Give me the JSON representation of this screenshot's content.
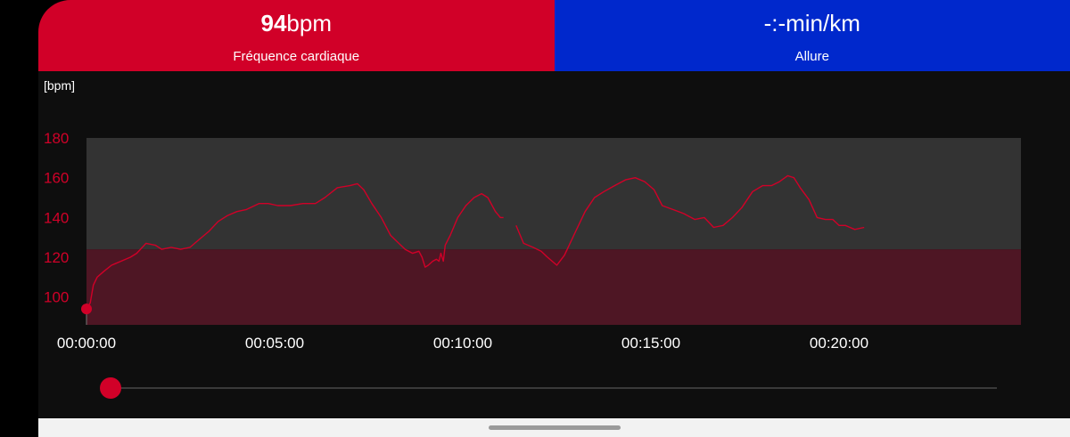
{
  "header": {
    "heart_rate": {
      "value": "94",
      "unit": "bpm",
      "label": "Fréquence cardiaque",
      "color": "#d10028"
    },
    "pace": {
      "value": "-:-",
      "unit": "min/km",
      "label": "Allure",
      "color": "#0028cc"
    }
  },
  "colors": {
    "line": "#d10028",
    "zone_high": "#333333",
    "zone_low": "#4e1624",
    "background": "#0e0e0e"
  },
  "chart_data": {
    "type": "line",
    "ylabel": "[bpm]",
    "ylim": [
      86,
      180
    ],
    "yticks": [
      100,
      120,
      140,
      160,
      180
    ],
    "xlim": [
      0,
      1490
    ],
    "xticks": [
      {
        "t": 0,
        "label": "00:00:00"
      },
      {
        "t": 300,
        "label": "00:05:00"
      },
      {
        "t": 600,
        "label": "00:10:00"
      },
      {
        "t": 900,
        "label": "00:15:00"
      },
      {
        "t": 1200,
        "label": "00:20:00"
      }
    ],
    "zones": [
      {
        "from": 86,
        "to": 124
      },
      {
        "from": 124,
        "to": 180
      }
    ],
    "marker": {
      "t": 0,
      "bpm": 94
    },
    "series": [
      {
        "segments": [
          [
            [
              0,
              94
            ],
            [
              6,
              97
            ],
            [
              11,
              106
            ],
            [
              17,
              110
            ],
            [
              28,
              113
            ],
            [
              40,
              116
            ],
            [
              55,
              118
            ],
            [
              70,
              120
            ],
            [
              80,
              122
            ],
            [
              95,
              127
            ],
            [
              110,
              126
            ],
            [
              120,
              124
            ],
            [
              135,
              125
            ],
            [
              150,
              124
            ],
            [
              165,
              125
            ],
            [
              180,
              129
            ],
            [
              195,
              133
            ],
            [
              210,
              138
            ],
            [
              225,
              141
            ],
            [
              240,
              143
            ],
            [
              255,
              144
            ],
            [
              275,
              147
            ],
            [
              290,
              147
            ],
            [
              305,
              146
            ],
            [
              325,
              146
            ],
            [
              345,
              147
            ],
            [
              365,
              147
            ],
            [
              380,
              150
            ],
            [
              400,
              155
            ],
            [
              420,
              156
            ],
            [
              432,
              157
            ],
            [
              442,
              154
            ],
            [
              455,
              147
            ],
            [
              470,
              140
            ],
            [
              485,
              131
            ],
            [
              498,
              127
            ],
            [
              508,
              124
            ],
            [
              520,
              122
            ],
            [
              530,
              123
            ],
            [
              535,
              120
            ],
            [
              540,
              115
            ],
            [
              545,
              116
            ],
            [
              552,
              118
            ],
            [
              558,
              119
            ],
            [
              562,
              118
            ],
            [
              565,
              122
            ],
            [
              569,
              118
            ],
            [
              572,
              126
            ],
            [
              580,
              131
            ],
            [
              592,
              140
            ],
            [
              605,
              146
            ],
            [
              618,
              150
            ],
            [
              630,
              152
            ],
            [
              640,
              150
            ],
            [
              652,
              143
            ],
            [
              660,
              140
            ],
            [
              665,
              140
            ]
          ],
          [
            [
              685,
              136
            ],
            [
              697,
              127
            ],
            [
              712,
              125
            ],
            [
              725,
              123
            ],
            [
              735,
              120
            ],
            [
              750,
              116
            ],
            [
              762,
              121
            ],
            [
              780,
              133
            ],
            [
              795,
              143
            ],
            [
              810,
              150
            ],
            [
              825,
              153
            ],
            [
              842,
              156
            ],
            [
              860,
              159
            ],
            [
              875,
              160
            ],
            [
              890,
              158
            ],
            [
              905,
              154
            ],
            [
              918,
              146
            ],
            [
              935,
              144
            ],
            [
              952,
              142
            ],
            [
              970,
              139
            ],
            [
              985,
              140
            ],
            [
              1000,
              135
            ],
            [
              1015,
              136
            ],
            [
              1030,
              140
            ],
            [
              1045,
              145
            ],
            [
              1062,
              153
            ],
            [
              1078,
              156
            ],
            [
              1092,
              156
            ],
            [
              1105,
              158
            ],
            [
              1118,
              161
            ],
            [
              1128,
              160
            ],
            [
              1138,
              155
            ],
            [
              1152,
              149
            ],
            [
              1165,
              140
            ],
            [
              1178,
              139
            ],
            [
              1190,
              139
            ],
            [
              1200,
              136
            ],
            [
              1210,
              136
            ],
            [
              1225,
              134
            ],
            [
              1240,
              135
            ]
          ]
        ]
      }
    ]
  },
  "slider": {
    "position": 0
  }
}
